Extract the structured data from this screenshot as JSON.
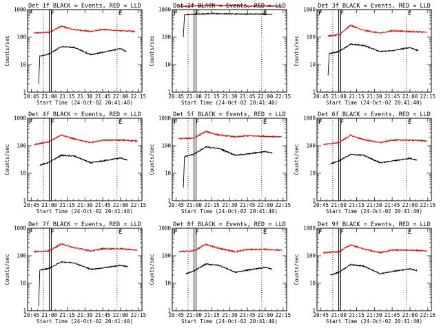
{
  "colors": {
    "events": "#000000",
    "lld": "#e00000",
    "background": "#ffffff",
    "frame": "#000000"
  },
  "chart_data": [
    {
      "type": "line",
      "title": "Det 1f BLACK = Events, RED = LLD",
      "xlabel": "Start Time (24-Oct-02 20:41:40)",
      "ylabel": "Counts/sec",
      "y_scale": "log",
      "ylim": [
        1,
        1000
      ],
      "y_tick_labels": [
        "1",
        "10",
        "100",
        "1000"
      ],
      "x_tick_labels": [
        "20:45",
        "21:00",
        "21:15",
        "21:30",
        "21:45",
        "22:00",
        "22:15"
      ],
      "flags": [
        "F",
        "F",
        "E"
      ],
      "grid": false,
      "legend": "none",
      "series": [
        {
          "color": "red",
          "x": [
            "20:47",
            "21:00",
            "21:10",
            "21:20",
            "21:35",
            "21:45",
            "22:00",
            "22:12"
          ],
          "y": [
            140,
            150,
            250,
            190,
            160,
            190,
            170,
            160
          ]
        },
        {
          "color": "black",
          "x": [
            "20:51",
            "20:52",
            "21:00",
            "21:10",
            "21:21",
            "21:35",
            "21:45",
            "22:00",
            "22:05"
          ],
          "y": [
            2,
            20,
            25,
            45,
            42,
            23,
            28,
            38,
            30
          ]
        }
      ]
    },
    {
      "type": "line",
      "title": "Det 2f BLACK = Events, RED = LLD",
      "xlabel": "Start Time (24-Oct-02 20:41:40)",
      "ylabel": "Counts/sec",
      "y_scale": "log",
      "ylim": [
        1,
        1000
      ],
      "y_tick_labels": [
        "1",
        "10",
        "100",
        "1000"
      ],
      "x_tick_labels": [
        "20:45",
        "21:00",
        "21:15",
        "21:30",
        "21:45",
        "22:00",
        "22:15"
      ],
      "flags": [
        "F",
        "F",
        "E"
      ],
      "grid": false,
      "legend": "none",
      "series": [
        {
          "color": "red",
          "x": [
            "20:47",
            "21:00",
            "21:15",
            "21:30",
            "21:45",
            "22:00",
            "22:14"
          ],
          "y": [
            1300,
            1350,
            1450,
            1400,
            1350,
            1350,
            1350
          ]
        },
        {
          "color": "black",
          "x": [
            "20:51",
            "20:52",
            "21:00",
            "21:15",
            "21:30",
            "21:45",
            "22:00",
            "22:06"
          ],
          "y": [
            100,
            650,
            680,
            720,
            700,
            690,
            690,
            680
          ]
        }
      ]
    },
    {
      "type": "line",
      "title": "Det 3f BLACK = Events, RED = LLD",
      "xlabel": "Start Time (24-Oct-02 20:41:40)",
      "ylabel": "Counts/sec",
      "y_scale": "log",
      "ylim": [
        1,
        1000
      ],
      "y_tick_labels": [
        "1",
        "10",
        "100",
        "1000"
      ],
      "x_tick_labels": [
        "20:45",
        "21:00",
        "21:15",
        "21:30",
        "21:45",
        "22:00",
        "22:15"
      ],
      "flags": [
        "F",
        "F",
        "E"
      ],
      "grid": false,
      "legend": "none",
      "series": [
        {
          "color": "red",
          "x": [
            "20:51",
            "21:00",
            "21:10",
            "21:20",
            "21:35",
            "21:45",
            "22:00",
            "22:14"
          ],
          "y": [
            110,
            120,
            270,
            180,
            140,
            170,
            160,
            150
          ]
        },
        {
          "color": "black",
          "x": [
            "20:51",
            "20:52",
            "21:00",
            "21:10",
            "21:21",
            "21:35",
            "21:45",
            "22:00",
            "22:07"
          ],
          "y": [
            4,
            25,
            30,
            55,
            50,
            30,
            32,
            42,
            32
          ]
        }
      ]
    },
    {
      "type": "line",
      "title": "Det 4f BLACK = Events, RED = LLD",
      "xlabel": "Start Time (24-Oct-02 20:41:40)",
      "ylabel": "Counts/sec",
      "y_scale": "log",
      "ylim": [
        1,
        1000
      ],
      "y_tick_labels": [
        "1",
        "10",
        "100",
        "1000"
      ],
      "x_tick_labels": [
        "20:45",
        "21:00",
        "21:15",
        "21:30",
        "21:45",
        "22:00",
        "22:15"
      ],
      "flags": [
        "F",
        "F",
        "E"
      ],
      "grid": false,
      "legend": "none",
      "series": [
        {
          "color": "red",
          "x": [
            "20:47",
            "21:00",
            "21:10",
            "21:20",
            "21:35",
            "21:45",
            "22:00",
            "22:14"
          ],
          "y": [
            110,
            140,
            250,
            180,
            130,
            160,
            160,
            150
          ]
        },
        {
          "color": "black",
          "x": [
            "20:52",
            "21:00",
            "21:10",
            "21:21",
            "21:35",
            "21:45",
            "22:00",
            "22:06"
          ],
          "y": [
            20,
            25,
            45,
            42,
            24,
            28,
            36,
            30
          ]
        }
      ]
    },
    {
      "type": "line",
      "title": "Det 5f BLACK = Events, RED = LLD",
      "xlabel": "Start Time (24-Oct-02 20:41:40)",
      "ylabel": "Counts/sec",
      "y_scale": "log",
      "ylim": [
        1,
        1000
      ],
      "y_tick_labels": [
        "1",
        "10",
        "100",
        "1000"
      ],
      "x_tick_labels": [
        "20:45",
        "21:00",
        "21:15",
        "21:30",
        "21:45",
        "22:00",
        "22:15"
      ],
      "flags": [
        "F",
        "F",
        "E"
      ],
      "grid": false,
      "legend": "none",
      "series": [
        {
          "color": "red",
          "x": [
            "20:47",
            "21:00",
            "21:10",
            "21:20",
            "21:35",
            "21:45",
            "22:00",
            "22:14"
          ],
          "y": [
            180,
            190,
            330,
            250,
            210,
            230,
            220,
            210
          ]
        },
        {
          "color": "black",
          "x": [
            "20:51",
            "20:52",
            "21:00",
            "21:10",
            "21:21",
            "21:35",
            "21:45",
            "22:00",
            "22:06"
          ],
          "y": [
            3,
            40,
            50,
            90,
            80,
            45,
            50,
            62,
            55
          ]
        }
      ]
    },
    {
      "type": "line",
      "title": "Det 6f BLACK = Events, RED = LLD",
      "xlabel": "Start Time (24-Oct-02 20:41:40)",
      "ylabel": "Counts/sec",
      "y_scale": "log",
      "ylim": [
        1,
        1000
      ],
      "y_tick_labels": [
        "1",
        "10",
        "100",
        "1000"
      ],
      "x_tick_labels": [
        "20:45",
        "21:00",
        "21:15",
        "21:30",
        "21:45",
        "22:00",
        "22:15"
      ],
      "flags": [
        "F",
        "F",
        "E"
      ],
      "grid": false,
      "legend": "none",
      "series": [
        {
          "color": "red",
          "x": [
            "20:47",
            "21:00",
            "21:10",
            "21:20",
            "21:35",
            "21:45",
            "22:00",
            "22:14"
          ],
          "y": [
            110,
            130,
            240,
            170,
            130,
            160,
            160,
            150
          ]
        },
        {
          "color": "black",
          "x": [
            "20:53",
            "21:00",
            "21:10",
            "21:21",
            "21:35",
            "21:45",
            "22:00",
            "22:06"
          ],
          "y": [
            22,
            28,
            48,
            45,
            24,
            28,
            35,
            30
          ]
        }
      ]
    },
    {
      "type": "line",
      "title": "Det 7f BLACK = Events, RED = LLD",
      "xlabel": "Start Time (24-Oct-02 20:41:40)",
      "ylabel": "Counts/sec",
      "y_scale": "log",
      "ylim": [
        1,
        1000
      ],
      "y_tick_labels": [
        "1",
        "10",
        "100",
        "1000"
      ],
      "x_tick_labels": [
        "20:45",
        "21:00",
        "21:15",
        "21:30",
        "21:45",
        "22:00",
        "22:15"
      ],
      "flags": [
        "F",
        "F",
        "E"
      ],
      "grid": false,
      "legend": "none",
      "series": [
        {
          "color": "red",
          "x": [
            "20:47",
            "21:00",
            "21:10",
            "21:20",
            "21:35",
            "21:45",
            "22:00",
            "22:14"
          ],
          "y": [
            140,
            150,
            270,
            200,
            150,
            180,
            180,
            160
          ]
        },
        {
          "color": "black",
          "x": [
            "20:51",
            "20:52",
            "21:00",
            "21:10",
            "21:21",
            "21:35",
            "21:45",
            "22:00",
            "22:06"
          ],
          "y": [
            1.5,
            30,
            35,
            60,
            55,
            32,
            36,
            45,
            40
          ]
        }
      ]
    },
    {
      "type": "line",
      "title": "Det 8f BLACK = Events, RED = LLD",
      "xlabel": "Start Time (24-Oct-02 20:41:40)",
      "ylabel": "Counts/sec",
      "y_scale": "log",
      "ylim": [
        1,
        1000
      ],
      "y_tick_labels": [
        "1",
        "10",
        "100",
        "1000"
      ],
      "x_tick_labels": [
        "20:45",
        "21:00",
        "21:15",
        "21:30",
        "21:45",
        "22:00",
        "22:15"
      ],
      "flags": [
        "F",
        "F",
        "E"
      ],
      "grid": false,
      "legend": "none",
      "series": [
        {
          "color": "red",
          "x": [
            "20:47",
            "21:00",
            "21:10",
            "21:20",
            "21:35",
            "21:45",
            "22:00",
            "22:14"
          ],
          "y": [
            140,
            150,
            260,
            190,
            140,
            170,
            170,
            160
          ]
        },
        {
          "color": "black",
          "x": [
            "20:53",
            "21:00",
            "21:10",
            "21:21",
            "21:35",
            "21:45",
            "22:00",
            "22:06"
          ],
          "y": [
            22,
            28,
            50,
            45,
            25,
            30,
            38,
            32
          ]
        }
      ]
    },
    {
      "type": "line",
      "title": "Det 9f BLACK = Events, RED = LLD",
      "xlabel": "Start Time (24-Oct-02 20:41:40)",
      "ylabel": "Counts/sec",
      "y_scale": "log",
      "ylim": [
        1,
        1000
      ],
      "y_tick_labels": [
        "1",
        "10",
        "100",
        "1000"
      ],
      "x_tick_labels": [
        "20:45",
        "21:00",
        "21:15",
        "21:30",
        "21:45",
        "22:00",
        "22:15"
      ],
      "flags": [
        "F",
        "F",
        "E"
      ],
      "grid": false,
      "legend": "none",
      "series": [
        {
          "color": "red",
          "x": [
            "20:47",
            "21:00",
            "21:10",
            "21:20",
            "21:35",
            "21:45",
            "22:00",
            "22:14"
          ],
          "y": [
            130,
            140,
            250,
            180,
            130,
            160,
            160,
            150
          ]
        },
        {
          "color": "black",
          "x": [
            "20:53",
            "21:00",
            "21:10",
            "21:21",
            "21:35",
            "21:45",
            "22:00",
            "22:06"
          ],
          "y": [
            20,
            25,
            48,
            42,
            22,
            27,
            33,
            29
          ]
        }
      ]
    }
  ]
}
